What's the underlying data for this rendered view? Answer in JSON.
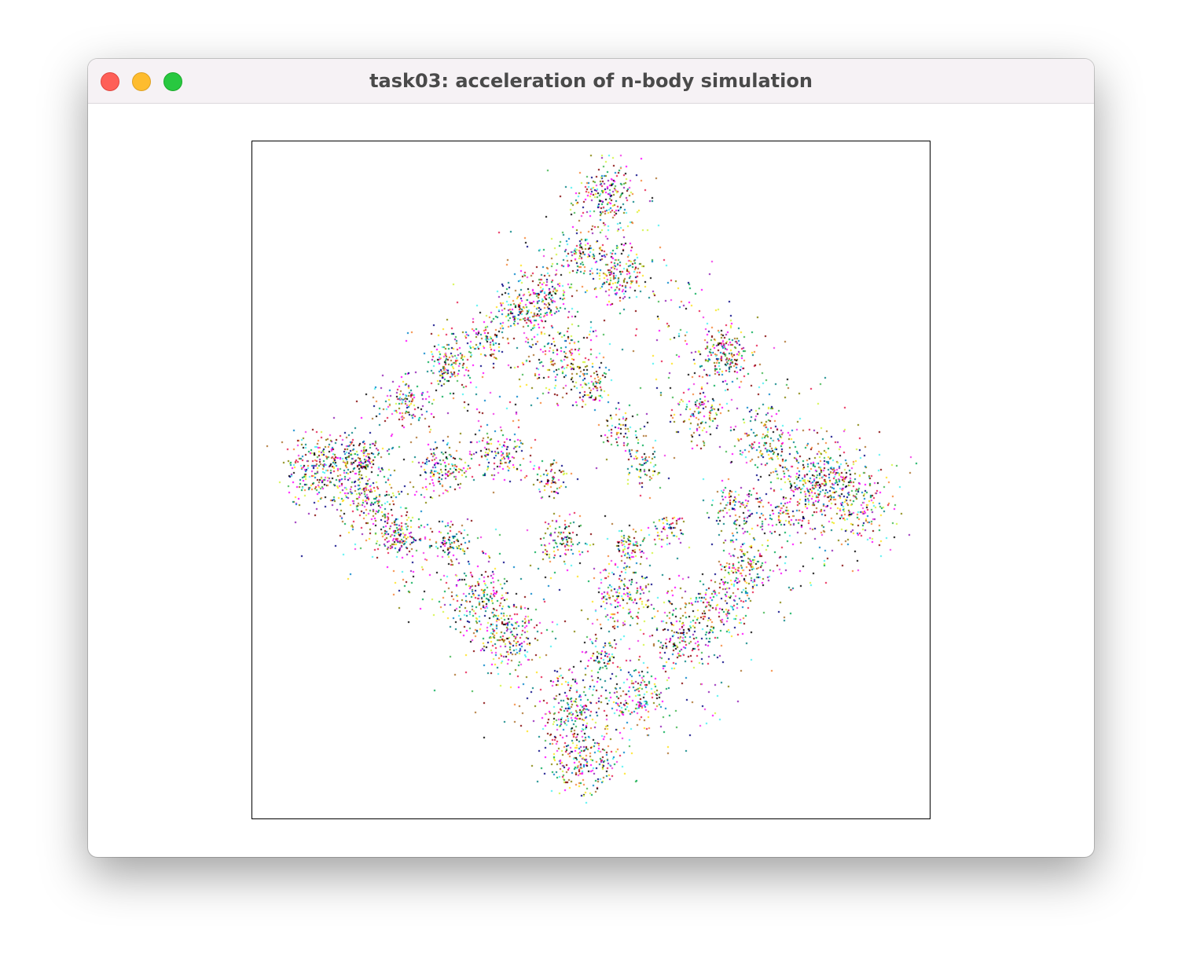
{
  "window": {
    "title": "task03: acceleration of n-body simulation",
    "controls": {
      "close": {
        "icon": "close-traffic-light",
        "color": "#fe5f57"
      },
      "minimize": {
        "icon": "minimize-traffic-light",
        "color": "#febc2e"
      },
      "zoom": {
        "icon": "zoom-traffic-light",
        "color": "#28c840"
      }
    }
  },
  "simulation": {
    "particle_colors": [
      "#e6194b",
      "#3cb44b",
      "#0082c8",
      "#911eb4",
      "#46f0f0",
      "#f032e6",
      "#d2f53c",
      "#008080",
      "#000080",
      "#000000",
      "#800000",
      "#ffe119",
      "#f58231",
      "#aa6e28",
      "#808000",
      "#ff00ff",
      "#00aa55"
    ],
    "background": "#ffffff",
    "frame_color": "#000000"
  }
}
